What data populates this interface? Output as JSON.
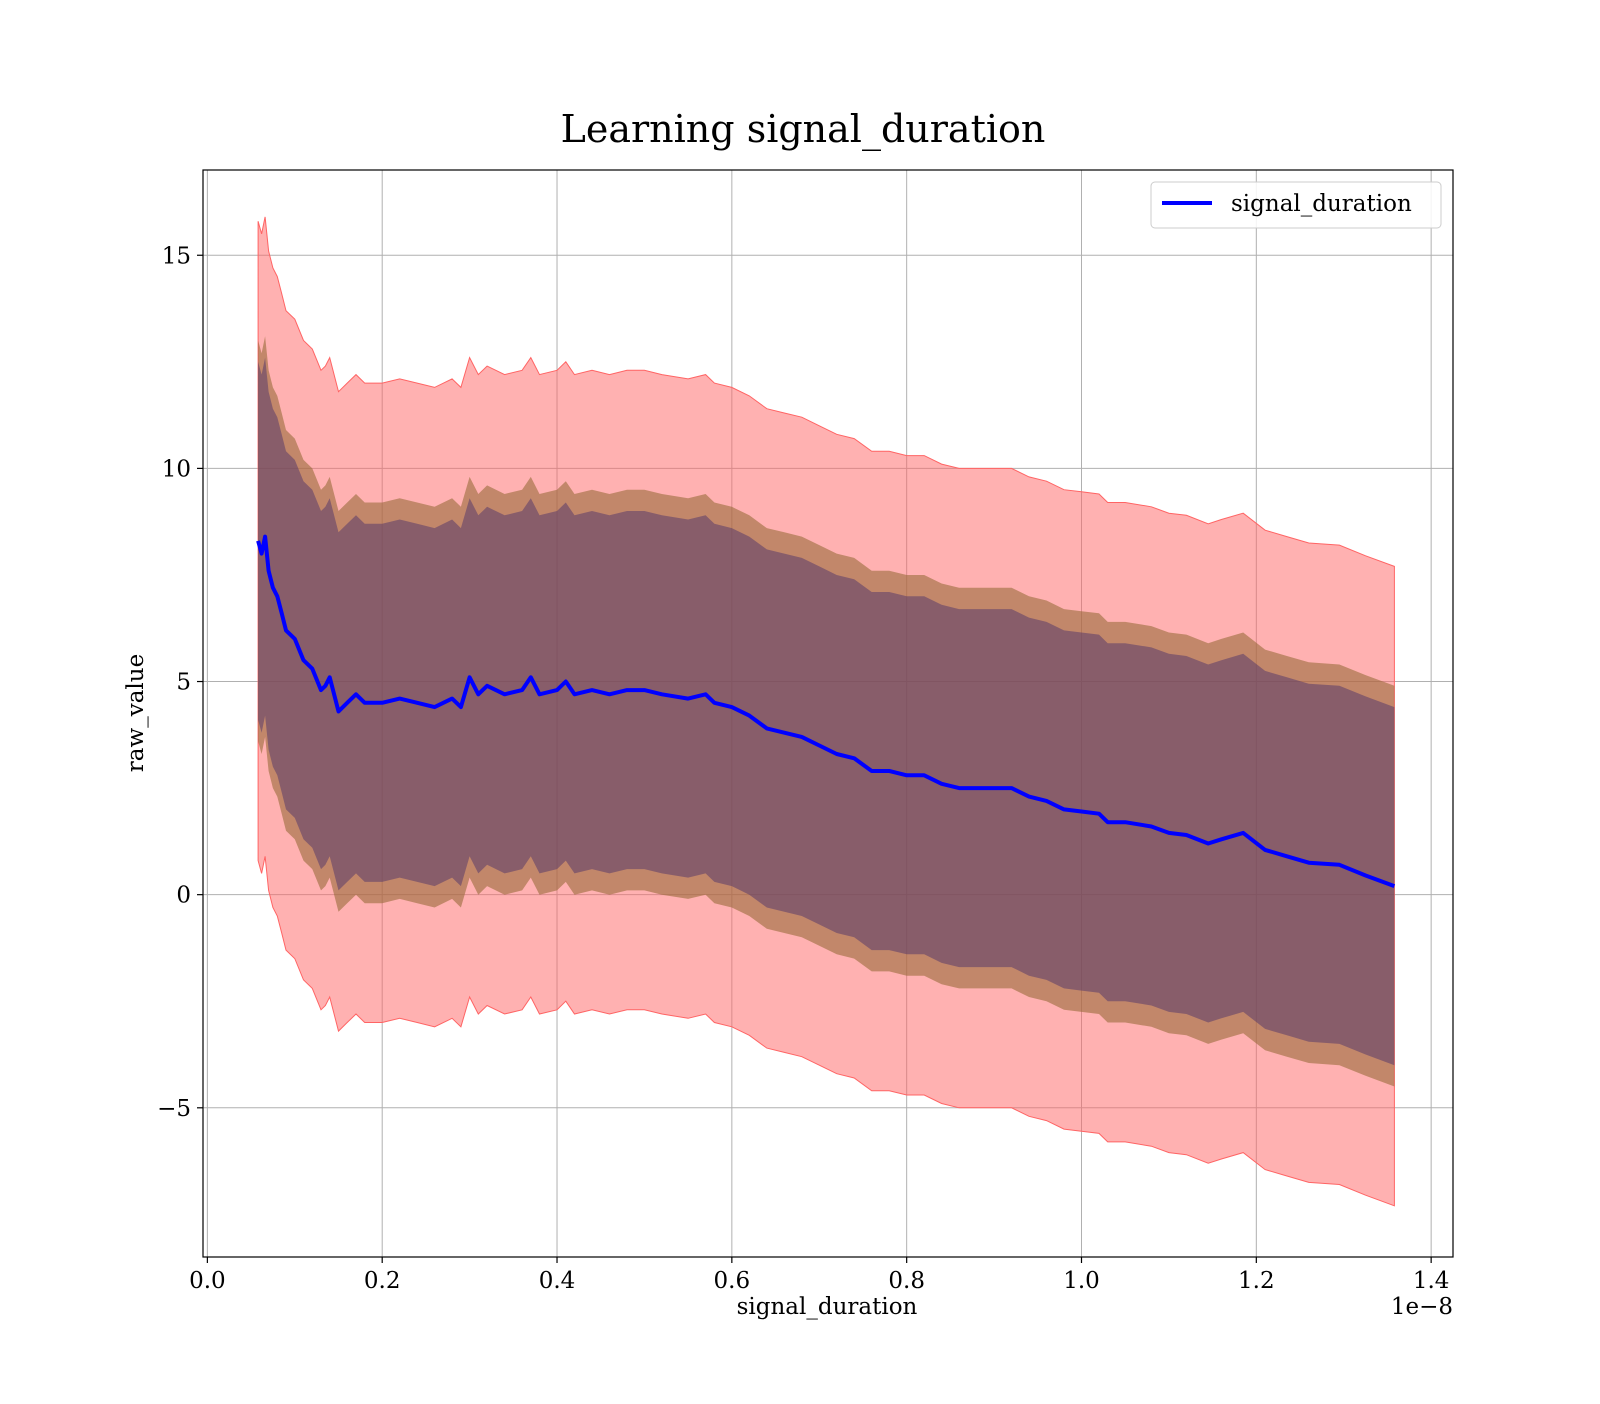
{
  "chart_data": {
    "type": "line",
    "title": "Learning signal_duration",
    "xlabel": "signal_duration",
    "ylabel": "raw_value",
    "x_offset_label": "1e−8",
    "xlim": [
      -0.005,
      1.425
    ],
    "ylim": [
      -8.5,
      17.0
    ],
    "xticks": [
      0.0,
      0.2,
      0.4,
      0.6,
      0.8,
      1.0,
      1.2,
      1.4
    ],
    "xtick_labels": [
      "0.0",
      "0.2",
      "0.4",
      "0.6",
      "0.8",
      "1.0",
      "1.2",
      "1.4"
    ],
    "yticks": [
      -5,
      0,
      5,
      10,
      15
    ],
    "ytick_labels": [
      "−5",
      "0",
      "5",
      "10",
      "15"
    ],
    "grid": true,
    "legend": {
      "position": "upper right",
      "entries": [
        {
          "label": "signal_duration",
          "color": "#0000ff"
        }
      ]
    },
    "colors": {
      "line": "#0000ff",
      "band_outer": "#ff6464",
      "band_middle": "#9a6a3a",
      "band_inner": "#5a3a6a",
      "grid": "#b0b0b0"
    },
    "series": [
      {
        "name": "signal_duration",
        "x": [
          0.058,
          0.062,
          0.066,
          0.07,
          0.075,
          0.08,
          0.085,
          0.09,
          0.1,
          0.11,
          0.12,
          0.13,
          0.135,
          0.14,
          0.15,
          0.16,
          0.17,
          0.18,
          0.2,
          0.22,
          0.24,
          0.26,
          0.28,
          0.29,
          0.3,
          0.31,
          0.32,
          0.34,
          0.36,
          0.37,
          0.38,
          0.4,
          0.41,
          0.42,
          0.44,
          0.46,
          0.48,
          0.5,
          0.52,
          0.55,
          0.57,
          0.58,
          0.6,
          0.62,
          0.64,
          0.66,
          0.68,
          0.7,
          0.72,
          0.74,
          0.76,
          0.78,
          0.8,
          0.82,
          0.84,
          0.86,
          0.88,
          0.9,
          0.92,
          0.94,
          0.96,
          0.98,
          1.0,
          1.02,
          1.03,
          1.05,
          1.08,
          1.1,
          1.12,
          1.145,
          1.16,
          1.185,
          1.21,
          1.235,
          1.26,
          1.295,
          1.325,
          1.358
        ],
        "y": [
          8.3,
          8.0,
          8.4,
          7.6,
          7.2,
          7.0,
          6.6,
          6.2,
          6.0,
          5.5,
          5.3,
          4.8,
          4.9,
          5.1,
          4.3,
          4.5,
          4.7,
          4.5,
          4.5,
          4.6,
          4.5,
          4.4,
          4.6,
          4.4,
          5.1,
          4.7,
          4.9,
          4.7,
          4.8,
          5.1,
          4.7,
          4.8,
          5.0,
          4.7,
          4.8,
          4.7,
          4.8,
          4.8,
          4.7,
          4.6,
          4.7,
          4.5,
          4.4,
          4.2,
          3.9,
          3.8,
          3.7,
          3.5,
          3.3,
          3.2,
          2.9,
          2.9,
          2.8,
          2.8,
          2.6,
          2.5,
          2.5,
          2.5,
          2.5,
          2.3,
          2.2,
          2.0,
          1.95,
          1.9,
          1.7,
          1.7,
          1.6,
          1.45,
          1.4,
          1.2,
          1.3,
          1.45,
          1.05,
          0.9,
          0.75,
          0.7,
          0.45,
          0.2
        ],
        "band_inner_halfwidth": [
          4.2,
          4.2,
          4.2,
          4.2,
          4.2,
          4.2,
          4.2,
          4.2,
          4.2,
          4.2,
          4.2,
          4.2,
          4.2,
          4.2,
          4.2,
          4.2,
          4.2,
          4.2,
          4.2,
          4.2,
          4.2,
          4.2,
          4.2,
          4.2,
          4.2,
          4.2,
          4.2,
          4.2,
          4.2,
          4.2,
          4.2,
          4.2,
          4.2,
          4.2,
          4.2,
          4.2,
          4.2,
          4.2,
          4.2,
          4.2,
          4.2,
          4.2,
          4.2,
          4.2,
          4.2,
          4.2,
          4.2,
          4.2,
          4.2,
          4.2,
          4.2,
          4.2,
          4.2,
          4.2,
          4.2,
          4.2,
          4.2,
          4.2,
          4.2,
          4.2,
          4.2,
          4.2,
          4.2,
          4.2,
          4.2,
          4.2,
          4.2,
          4.2,
          4.2,
          4.2,
          4.2,
          4.2,
          4.2,
          4.2,
          4.2,
          4.2,
          4.2,
          4.2
        ],
        "band_middle_halfwidth": [
          4.7,
          4.7,
          4.7,
          4.7,
          4.7,
          4.7,
          4.7,
          4.7,
          4.7,
          4.7,
          4.7,
          4.7,
          4.7,
          4.7,
          4.7,
          4.7,
          4.7,
          4.7,
          4.7,
          4.7,
          4.7,
          4.7,
          4.7,
          4.7,
          4.7,
          4.7,
          4.7,
          4.7,
          4.7,
          4.7,
          4.7,
          4.7,
          4.7,
          4.7,
          4.7,
          4.7,
          4.7,
          4.7,
          4.7,
          4.7,
          4.7,
          4.7,
          4.7,
          4.7,
          4.7,
          4.7,
          4.7,
          4.7,
          4.7,
          4.7,
          4.7,
          4.7,
          4.7,
          4.7,
          4.7,
          4.7,
          4.7,
          4.7,
          4.7,
          4.7,
          4.7,
          4.7,
          4.7,
          4.7,
          4.7,
          4.7,
          4.7,
          4.7,
          4.7,
          4.7,
          4.7,
          4.7,
          4.7,
          4.7,
          4.7,
          4.7,
          4.7,
          4.7
        ],
        "band_outer_halfwidth": [
          7.5,
          7.5,
          7.5,
          7.5,
          7.5,
          7.5,
          7.5,
          7.5,
          7.5,
          7.5,
          7.5,
          7.5,
          7.5,
          7.5,
          7.5,
          7.5,
          7.5,
          7.5,
          7.5,
          7.5,
          7.5,
          7.5,
          7.5,
          7.5,
          7.5,
          7.5,
          7.5,
          7.5,
          7.5,
          7.5,
          7.5,
          7.5,
          7.5,
          7.5,
          7.5,
          7.5,
          7.5,
          7.5,
          7.5,
          7.5,
          7.5,
          7.5,
          7.5,
          7.5,
          7.5,
          7.5,
          7.5,
          7.5,
          7.5,
          7.5,
          7.5,
          7.5,
          7.5,
          7.5,
          7.5,
          7.5,
          7.5,
          7.5,
          7.5,
          7.5,
          7.5,
          7.5,
          7.5,
          7.5,
          7.5,
          7.5,
          7.5,
          7.5,
          7.5,
          7.5,
          7.5,
          7.5,
          7.5,
          7.5,
          7.5,
          7.5,
          7.5,
          7.5
        ]
      }
    ]
  }
}
